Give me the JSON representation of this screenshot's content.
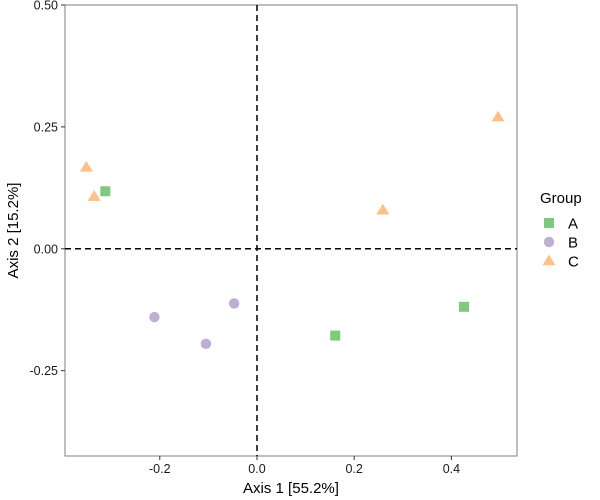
{
  "chart_data": {
    "type": "scatter",
    "xlabel": "Axis 1 [55.2%]",
    "ylabel": "Axis 2 [15.2%]",
    "xlim": [
      -0.395,
      0.535
    ],
    "ylim": [
      -0.425,
      0.5
    ],
    "x_ticks": [
      -0.2,
      0.0,
      0.2,
      0.4
    ],
    "x_tick_labels": [
      "-0.2",
      "0.0",
      "0.2",
      "0.4"
    ],
    "y_ticks": [
      -0.25,
      0.0,
      0.25,
      0.5
    ],
    "y_tick_labels": [
      "-0.25",
      "0.00",
      "0.25",
      "0.50"
    ],
    "reference_lines": {
      "x": 0.0,
      "y": 0.0,
      "style": "dashed"
    },
    "grid": false,
    "legend": {
      "title": "Group",
      "placement": "right"
    },
    "series": [
      {
        "name": "A",
        "shape": "square",
        "color": "#7fc97f",
        "points": [
          {
            "x": -0.312,
            "y": 0.118
          },
          {
            "x": 0.161,
            "y": -0.178
          },
          {
            "x": 0.426,
            "y": -0.119
          }
        ]
      },
      {
        "name": "B",
        "shape": "circle",
        "color": "#beaed4",
        "points": [
          {
            "x": -0.211,
            "y": -0.14
          },
          {
            "x": -0.105,
            "y": -0.195
          },
          {
            "x": -0.047,
            "y": -0.112
          }
        ]
      },
      {
        "name": "C",
        "shape": "triangle",
        "color": "#fdc086",
        "points": [
          {
            "x": -0.351,
            "y": 0.167
          },
          {
            "x": -0.335,
            "y": 0.107
          },
          {
            "x": 0.259,
            "y": 0.079
          },
          {
            "x": 0.496,
            "y": 0.27
          }
        ]
      }
    ]
  }
}
